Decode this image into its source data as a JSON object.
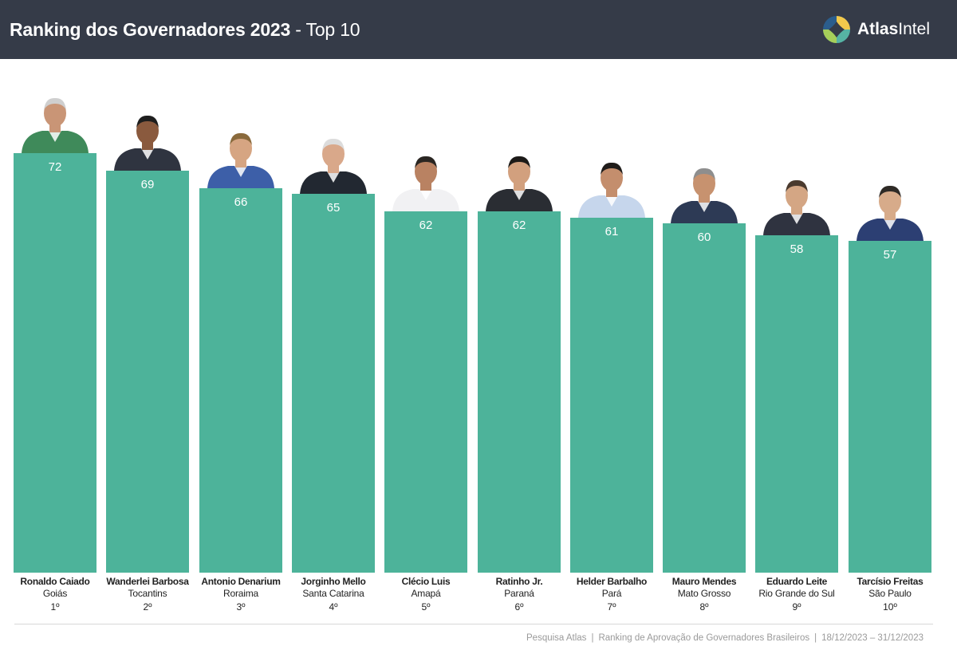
{
  "header": {
    "title_bold": "Ranking dos Governadores 2023",
    "title_rest": " - Top 10",
    "brand_first": "Atlas",
    "brand_second": "Intel"
  },
  "colors": {
    "bar": "#4db39a",
    "header_bg": "#353b48"
  },
  "chart_data": {
    "type": "bar",
    "title": "Ranking dos Governadores 2023 - Top 10",
    "xlabel": "",
    "ylabel": "",
    "ylim": [
      0,
      80
    ],
    "grid": false,
    "categories": [
      "Ronaldo Caiado",
      "Wanderlei Barbosa",
      "Antonio Denarium",
      "Jorginho Mello",
      "Clécio Luis",
      "Ratinho Jr.",
      "Helder Barbalho",
      "Mauro Mendes",
      "Eduardo Leite",
      "Tarcísio Freitas"
    ],
    "states": [
      "Goiás",
      "Tocantins",
      "Roraima",
      "Santa Catarina",
      "Amapá",
      "Paraná",
      "Pará",
      "Mato Grosso",
      "Rio Grande do Sul",
      "São Paulo"
    ],
    "ranks": [
      "1º",
      "2º",
      "3º",
      "4º",
      "5º",
      "6º",
      "7º",
      "8º",
      "9º",
      "10º"
    ],
    "values": [
      72,
      69,
      66,
      65,
      62,
      62,
      61,
      60,
      58,
      57
    ]
  },
  "footer": {
    "source": "Pesquisa Atlas",
    "survey": "Ranking de Aprovação de Governadores Brasileiros",
    "dates": "18/12/2023 – 31/12/2023"
  }
}
